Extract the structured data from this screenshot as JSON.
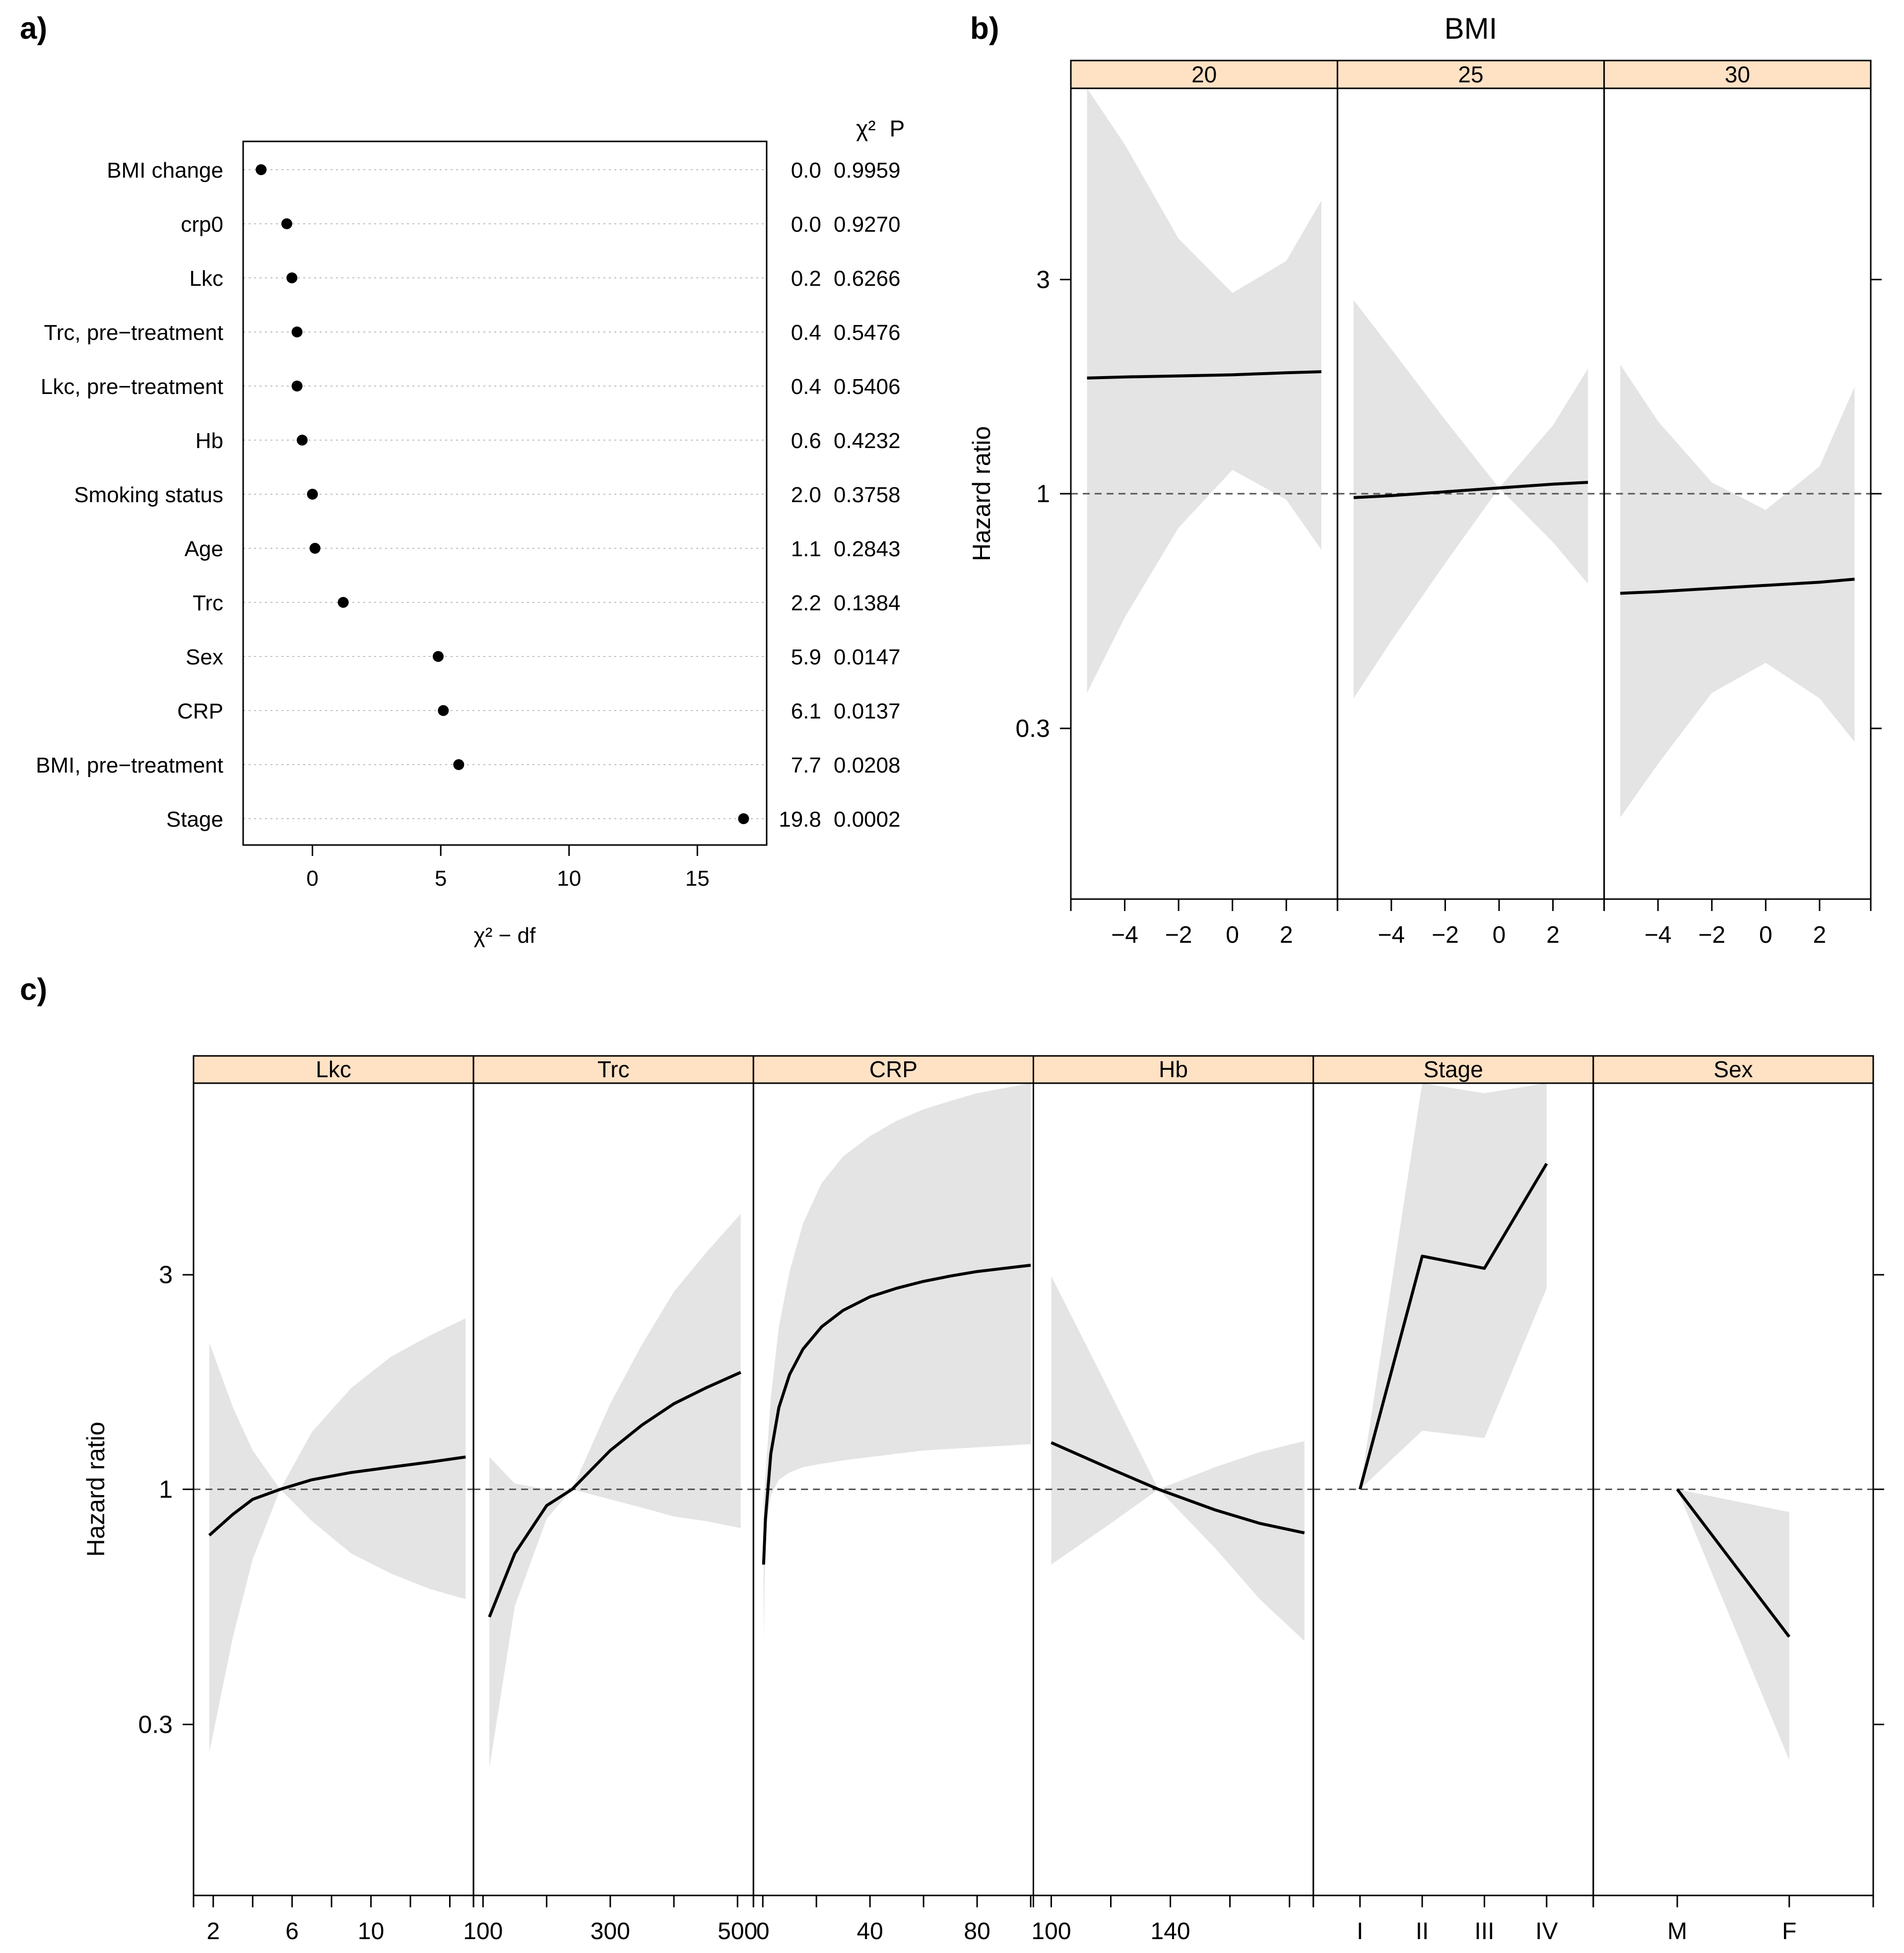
{
  "panel_labels": {
    "a": "a)",
    "b": "b)",
    "c": "c)"
  },
  "chart_data": [
    {
      "id": "a",
      "type": "scatter",
      "title": "",
      "xlabel": "χ² − df",
      "ylabel": "",
      "xlim": [
        -2.7,
        17.7
      ],
      "xticks": [
        "0",
        "5",
        "10",
        "15"
      ],
      "column_headers": {
        "chisq": "χ²",
        "p": "P"
      },
      "grid": "horizontal dotted",
      "rows": [
        {
          "label": "BMI change",
          "value": -2.0,
          "chisq": "0.0",
          "p": "0.9959"
        },
        {
          "label": "crp0",
          "value": -1.0,
          "chisq": "0.0",
          "p": "0.9270"
        },
        {
          "label": "Lkc",
          "value": -0.8,
          "chisq": "0.2",
          "p": "0.6266"
        },
        {
          "label": "Trc, pre−treatment",
          "value": -0.6,
          "chisq": "0.4",
          "p": "0.5476"
        },
        {
          "label": "Lkc, pre−treatment",
          "value": -0.6,
          "chisq": "0.4",
          "p": "0.5406"
        },
        {
          "label": "Hb",
          "value": -0.4,
          "chisq": "0.6",
          "p": "0.4232"
        },
        {
          "label": "Smoking status",
          "value": 0.0,
          "chisq": "2.0",
          "p": "0.3758"
        },
        {
          "label": "Age",
          "value": 0.1,
          "chisq": "1.1",
          "p": "0.2843"
        },
        {
          "label": "Trc",
          "value": 1.2,
          "chisq": "2.2",
          "p": "0.1384"
        },
        {
          "label": "Sex",
          "value": 4.9,
          "chisq": "5.9",
          "p": "0.0147"
        },
        {
          "label": "CRP",
          "value": 5.1,
          "chisq": "6.1",
          "p": "0.0137"
        },
        {
          "label": "BMI, pre−treatment",
          "value": 5.7,
          "chisq": "7.7",
          "p": "0.0208"
        },
        {
          "label": "Stage",
          "value": 16.8,
          "chisq": "19.8",
          "p": "0.0002"
        }
      ]
    },
    {
      "id": "b",
      "type": "line",
      "title": "BMI",
      "ylabel": "Hazard ratio",
      "yscale": "log",
      "ylim": [
        0.125,
        8.0
      ],
      "yticks": [
        {
          "value": 0.3,
          "label": "0.3"
        },
        {
          "value": 1,
          "label": "1"
        },
        {
          "value": 3,
          "label": "3"
        }
      ],
      "reference_line": 1,
      "xlim": [
        -6.0,
        3.9
      ],
      "xticks": [
        {
          "value": -4,
          "label": "−4"
        },
        {
          "value": -2,
          "label": "−2"
        },
        {
          "value": 0,
          "label": "0"
        },
        {
          "value": 2,
          "label": "2"
        }
      ],
      "panels": [
        {
          "label": "20",
          "x": [
            -5.4,
            -4,
            -2,
            0,
            2,
            3.3
          ],
          "y": [
            1.81,
            1.82,
            1.83,
            1.84,
            1.86,
            1.87
          ],
          "lower": [
            0.36,
            0.53,
            0.84,
            1.13,
            0.97,
            0.75
          ],
          "upper": [
            8.0,
            6.0,
            3.7,
            2.8,
            3.3,
            4.5
          ]
        },
        {
          "label": "25",
          "x": [
            -5.4,
            -4,
            -2,
            0,
            2,
            3.3
          ],
          "y": [
            0.98,
            0.99,
            1.01,
            1.03,
            1.05,
            1.06
          ],
          "lower": [
            0.35,
            0.47,
            0.7,
            1.03,
            0.78,
            0.63
          ],
          "upper": [
            2.7,
            2.1,
            1.46,
            1.03,
            1.42,
            1.9
          ]
        },
        {
          "label": "30",
          "x": [
            -5.4,
            -4,
            -2,
            0,
            2,
            3.3
          ],
          "y": [
            0.6,
            0.605,
            0.615,
            0.625,
            0.635,
            0.645
          ],
          "lower": [
            0.19,
            0.25,
            0.36,
            0.42,
            0.35,
            0.28
          ],
          "upper": [
            1.94,
            1.45,
            1.06,
            0.92,
            1.15,
            1.73
          ]
        }
      ]
    },
    {
      "id": "c",
      "type": "line",
      "ylabel": "Hazard ratio",
      "yscale": "log",
      "ylim": [
        0.125,
        8.0
      ],
      "yticks": [
        {
          "value": 0.3,
          "label": "0.3"
        },
        {
          "value": 1,
          "label": "1"
        },
        {
          "value": 3,
          "label": "3"
        }
      ],
      "reference_line": 1,
      "panels": [
        {
          "label": "Lkc",
          "xlim": [
            1.0,
            15.2
          ],
          "xticks": [
            {
              "value": 2,
              "label": "2"
            },
            {
              "value": 6,
              "label": "6"
            },
            {
              "value": 10,
              "label": "10"
            }
          ],
          "minor_ticks": [
            4,
            8,
            12,
            14
          ],
          "x": [
            1.8,
            3,
            4,
            5.4,
            7,
            9,
            11,
            13,
            14.8
          ],
          "y": [
            0.79,
            0.88,
            0.95,
            1.0,
            1.05,
            1.09,
            1.12,
            1.15,
            1.18
          ],
          "lower": [
            0.26,
            0.47,
            0.7,
            1.0,
            0.85,
            0.72,
            0.65,
            0.6,
            0.57
          ],
          "upper": [
            2.12,
            1.52,
            1.22,
            1.0,
            1.34,
            1.68,
            1.97,
            2.2,
            2.4
          ]
        },
        {
          "label": "Trc",
          "xlim": [
            85,
            525
          ],
          "xticks": [
            {
              "value": 100,
              "label": "100"
            },
            {
              "value": 300,
              "label": "300"
            },
            {
              "value": 500,
              "label": "500"
            }
          ],
          "minor_ticks": [
            200,
            400
          ],
          "x": [
            110,
            150,
            200,
            240,
            300,
            350,
            400,
            450,
            505
          ],
          "y": [
            0.52,
            0.72,
            0.92,
            1.0,
            1.22,
            1.39,
            1.55,
            1.68,
            1.82
          ],
          "lower": [
            0.24,
            0.55,
            0.86,
            1.0,
            0.95,
            0.91,
            0.87,
            0.85,
            0.82
          ],
          "upper": [
            1.18,
            1.03,
            1.0,
            1.0,
            1.55,
            2.1,
            2.75,
            3.35,
            4.1
          ]
        },
        {
          "label": "CRP",
          "xlim": [
            -3.5,
            101
          ],
          "xticks": [
            {
              "value": 0,
              "label": "0"
            },
            {
              "value": 40,
              "label": "40"
            },
            {
              "value": 80,
              "label": "80"
            }
          ],
          "minor_ticks": [
            20,
            60,
            100
          ],
          "x": [
            0.3,
            1,
            3,
            6,
            10,
            15,
            22,
            30,
            40,
            50,
            60,
            70,
            80,
            90,
            100
          ],
          "y": [
            0.68,
            0.86,
            1.2,
            1.52,
            1.8,
            2.05,
            2.3,
            2.5,
            2.68,
            2.8,
            2.9,
            2.98,
            3.05,
            3.1,
            3.15
          ],
          "lower": [
            0.45,
            0.8,
            0.97,
            1.05,
            1.09,
            1.12,
            1.14,
            1.16,
            1.18,
            1.2,
            1.22,
            1.23,
            1.24,
            1.25,
            1.26
          ],
          "upper": [
            0.95,
            1.07,
            1.6,
            2.3,
            3.05,
            3.9,
            4.8,
            5.5,
            6.1,
            6.6,
            7.0,
            7.3,
            7.6,
            7.8,
            8.0
          ]
        },
        {
          "label": "Hb",
          "xlim": [
            94,
            188
          ],
          "xticks": [
            {
              "value": 100,
              "label": "100"
            },
            {
              "value": 140,
              "label": "140"
            }
          ],
          "minor_ticks": [
            120,
            160,
            180
          ],
          "x": [
            100,
            120,
            136,
            155,
            170,
            185
          ],
          "y": [
            1.27,
            1.11,
            1.0,
            0.9,
            0.84,
            0.8
          ],
          "lower": [
            0.68,
            0.84,
            1.0,
            0.74,
            0.57,
            0.46
          ],
          "upper": [
            2.98,
            1.63,
            1.0,
            1.12,
            1.21,
            1.28
          ]
        },
        {
          "label": "Stage",
          "type": "categorical",
          "categories": [
            "I",
            "II",
            "III",
            "IV"
          ],
          "y": [
            1.0,
            3.3,
            3.1,
            5.3
          ],
          "lower": [
            1.0,
            1.35,
            1.3,
            2.8
          ],
          "upper": [
            1.0,
            8.0,
            7.6,
            8.0
          ]
        },
        {
          "label": "Sex",
          "type": "categorical",
          "categories": [
            "M",
            "F"
          ],
          "y": [
            1.0,
            0.47
          ],
          "lower": [
            1.0,
            0.25
          ],
          "upper": [
            1.0,
            0.89
          ]
        }
      ]
    }
  ]
}
